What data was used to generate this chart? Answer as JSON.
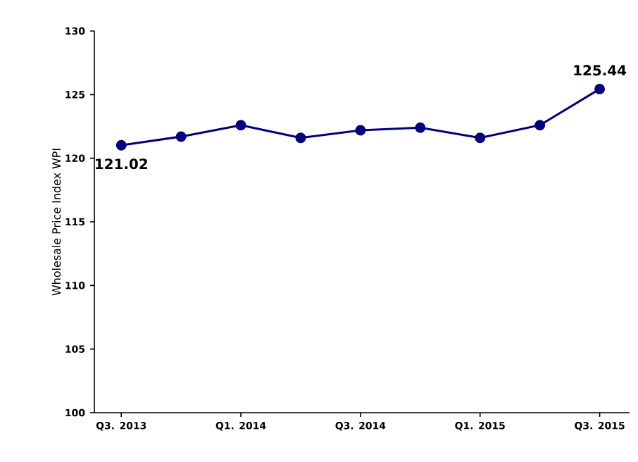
{
  "chart_data": {
    "type": "line",
    "ylabel": "Wholesale Price Index WPI",
    "categories": [
      "Q3. 2013",
      null,
      "Q1. 2014",
      null,
      "Q3. 2014",
      null,
      "Q1. 2015",
      null,
      "Q3. 2015"
    ],
    "values": [
      121.02,
      121.7,
      122.6,
      121.6,
      122.2,
      122.4,
      121.6,
      122.6,
      125.44
    ],
    "value_labels": [
      "121.02",
      null,
      null,
      null,
      null,
      null,
      null,
      null,
      "125.44"
    ],
    "color": "#000080",
    "marker": "circle",
    "line_style": "solid",
    "grid": false,
    "ylim": [
      100,
      130
    ],
    "yticks": [
      100,
      105,
      110,
      115,
      120,
      125,
      130
    ]
  }
}
